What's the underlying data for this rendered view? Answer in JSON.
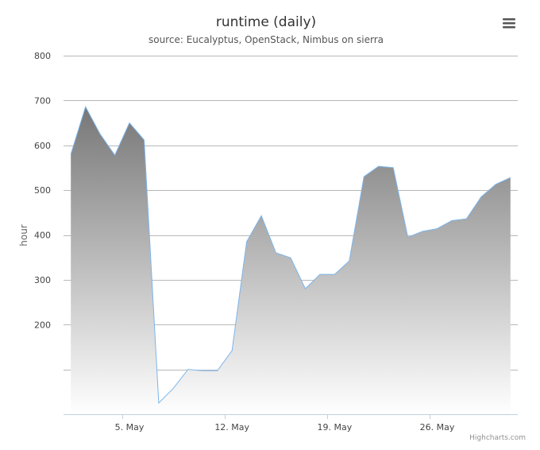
{
  "chart_data": {
    "type": "area",
    "title": "runtime (daily)",
    "subtitle": "source: Eucalyptus, OpenStack, Nimbus on sierra",
    "ylabel": "hour",
    "xlabel": "",
    "ylim": [
      0,
      800
    ],
    "yticks": [
      200,
      300,
      400,
      500,
      600,
      700,
      800
    ],
    "x_range_days": [
      0.5,
      31.5
    ],
    "xticks": [
      {
        "day": 5,
        "label": "5. May"
      },
      {
        "day": 12,
        "label": "12. May"
      },
      {
        "day": 19,
        "label": "19. May"
      },
      {
        "day": 26,
        "label": "26. May"
      }
    ],
    "grid": true,
    "legend": "none",
    "series": [
      {
        "days": [
          1,
          2,
          3,
          4,
          5,
          6,
          7,
          8,
          9,
          10,
          11,
          12,
          13,
          14,
          15,
          16,
          17,
          18,
          19,
          20,
          21,
          22,
          23,
          24,
          25,
          26,
          27,
          28,
          29,
          30,
          31
        ],
        "values": [
          580,
          686,
          625,
          578,
          650,
          612,
          25,
          58,
          100,
          97,
          97,
          142,
          385,
          443,
          360,
          349,
          280,
          312,
          312,
          342,
          530,
          553,
          550,
          395,
          408,
          414,
          432,
          436,
          485,
          513,
          528
        ]
      }
    ],
    "line_color": "#7cb5ec"
  },
  "menu": {
    "icon": "hamburger-menu-icon"
  },
  "credits": "Highcharts.com"
}
